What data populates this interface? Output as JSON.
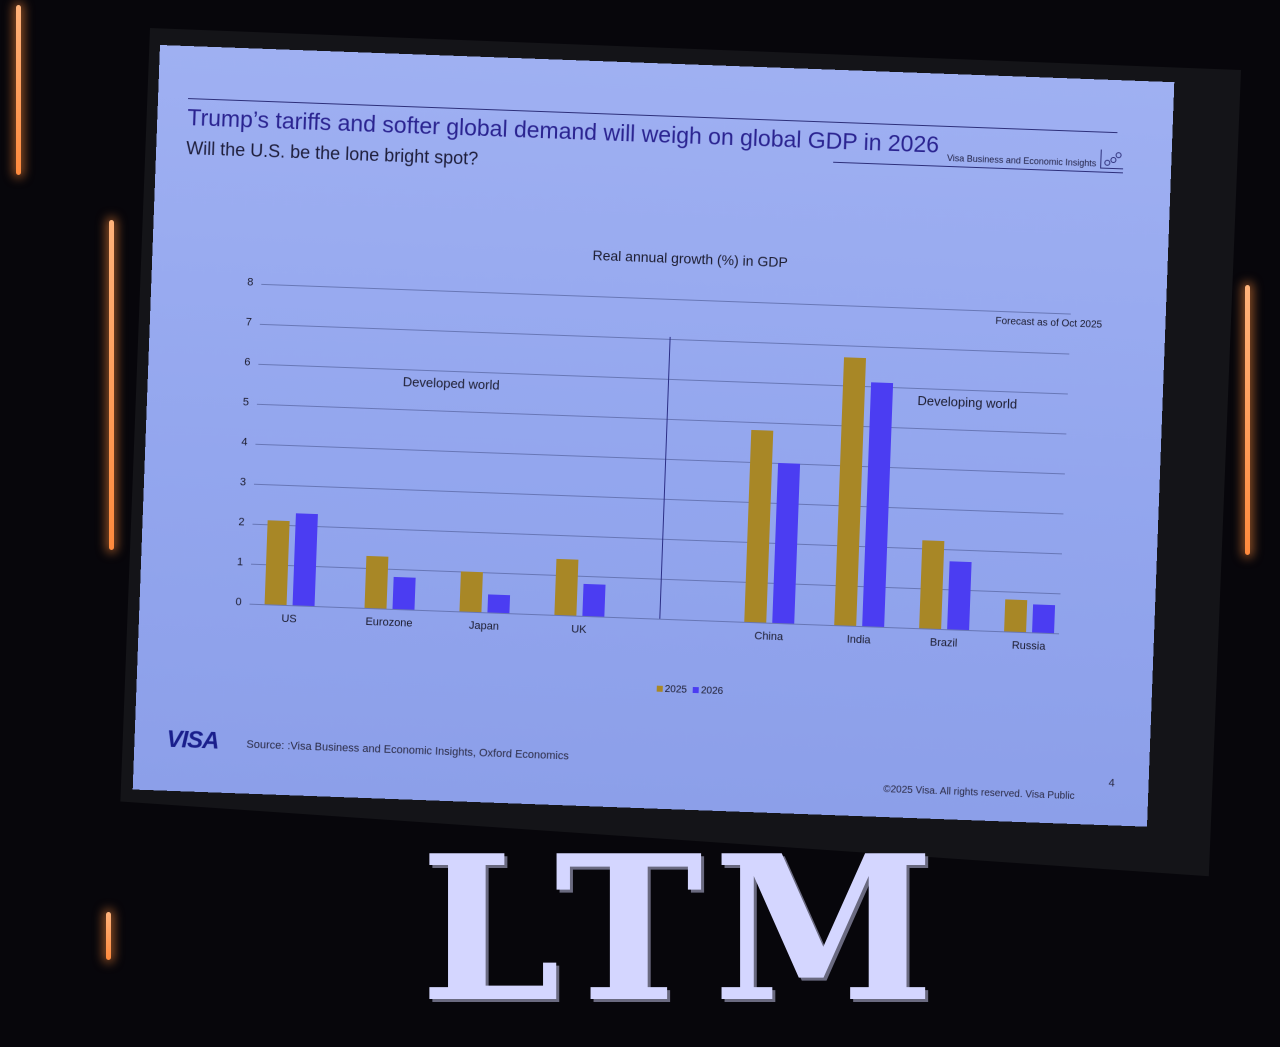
{
  "slide": {
    "title": "Trump’s tariffs and softer global demand will weigh on global GDP in 2026",
    "subtitle": "Will the U.S. be the lone bright spot?",
    "brand_header": "Visa Business and Economic Insights",
    "brand_icon": "scatter-plot-icon",
    "source": "Source: :Visa Business and Economic Insights, Oxford Economics",
    "logo": "VISA",
    "page_number": "4",
    "copyright": "©2025 Visa. All rights reserved. Visa Public",
    "colors": {
      "series_2025": "#a88726",
      "series_2026": "#4b3df2",
      "title": "#2a2390",
      "background": "#93a6ee"
    }
  },
  "stage": {
    "backdrop_letters": "LTM"
  },
  "chart_data": {
    "type": "bar",
    "title": "Real annual growth (%) in GDP",
    "annotation": "Forecast as of Oct 2025",
    "xlabel": "",
    "ylabel": "",
    "ylim": [
      0,
      8
    ],
    "yticks": [
      "0",
      "1",
      "2",
      "3",
      "4",
      "5",
      "6",
      "7",
      "8"
    ],
    "grid": true,
    "legend_position": "bottom",
    "groups": [
      {
        "name": "Developed world",
        "categories": [
          "US",
          "Eurozone",
          "Japan",
          "UK"
        ]
      },
      {
        "name": "Developing world",
        "categories": [
          "China",
          "India",
          "Brazil",
          "Russia"
        ]
      }
    ],
    "categories": [
      "US",
      "Eurozone",
      "Japan",
      "UK",
      "China",
      "India",
      "Brazil",
      "Russia"
    ],
    "series": [
      {
        "name": "2025",
        "values": [
          2.1,
          1.3,
          1.0,
          1.4,
          4.8,
          6.7,
          2.2,
          0.8
        ]
      },
      {
        "name": "2026",
        "values": [
          2.3,
          0.8,
          0.45,
          0.8,
          4.0,
          6.1,
          1.7,
          0.7
        ]
      }
    ]
  }
}
